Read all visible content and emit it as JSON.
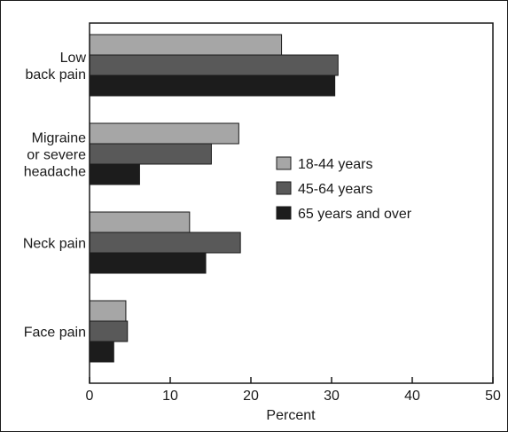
{
  "chart_data": {
    "type": "bar",
    "orientation": "horizontal",
    "categories": [
      [
        "Low",
        "back pain"
      ],
      [
        "Migraine",
        "or severe",
        "headache"
      ],
      [
        "Neck pain"
      ],
      [
        "Face pain"
      ]
    ],
    "series": [
      {
        "name": "18-44 years",
        "color": "#a6a6a6",
        "values": [
          23.8,
          18.5,
          12.4,
          4.5
        ]
      },
      {
        "name": "45-64 years",
        "color": "#595959",
        "values": [
          30.8,
          15.1,
          18.7,
          4.7
        ]
      },
      {
        "name": "65 years and over",
        "color": "#1c1c1c",
        "values": [
          30.4,
          6.2,
          14.4,
          3.0
        ]
      }
    ],
    "xlabel": "Percent",
    "xlim": [
      0,
      50
    ],
    "xticks": [
      0,
      10,
      20,
      30,
      40,
      50
    ],
    "grid": false,
    "legend_position": "right-center"
  }
}
